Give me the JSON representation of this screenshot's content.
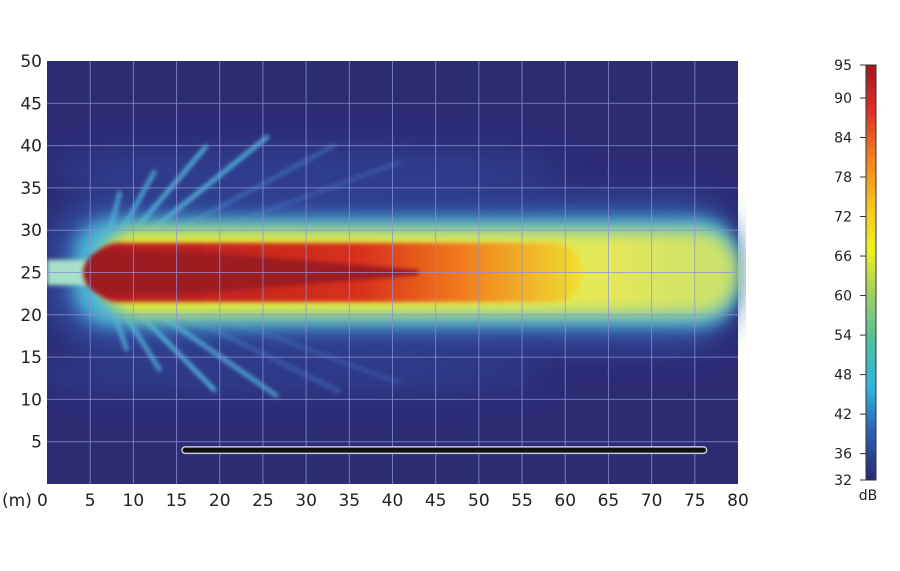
{
  "chart_data": {
    "type": "heatmap",
    "title": "",
    "xlabel": "",
    "ylabel": "",
    "x_unit_label": "(m)",
    "xlim": [
      0,
      80
    ],
    "ylim": [
      0,
      50
    ],
    "x_ticks": [
      0,
      5,
      10,
      15,
      20,
      25,
      30,
      35,
      40,
      45,
      50,
      55,
      60,
      65,
      70,
      75,
      80
    ],
    "y_ticks": [
      5,
      10,
      15,
      20,
      25,
      30,
      35,
      40,
      45,
      50
    ],
    "grid": true,
    "background_color": "#2b2c74",
    "grid_color": "#8d92d8",
    "source": {
      "x": 5,
      "y": 25
    },
    "barrier": {
      "x_start": 16,
      "x_end": 76,
      "y": 4
    },
    "zones": [
      {
        "level_db": 95,
        "x_range": [
          5,
          43
        ],
        "y_range": [
          22.5,
          27.5
        ]
      },
      {
        "level_db": 84,
        "x_range": [
          5,
          62
        ],
        "y_range": [
          21.5,
          28.5
        ]
      },
      {
        "level_db": 72,
        "x_range": [
          6,
          80
        ],
        "y_range": [
          20,
          30
        ]
      },
      {
        "level_db": 54,
        "x_range": [
          3,
          80
        ],
        "y_range": [
          18.5,
          31.5
        ]
      },
      {
        "level_db": 42,
        "x_range": [
          0,
          80
        ],
        "y_range": [
          16,
          34
        ]
      }
    ],
    "colorbar": {
      "unit": "dB",
      "min": 32,
      "max": 95,
      "ticks": [
        95,
        90,
        84,
        78,
        72,
        66,
        60,
        54,
        48,
        42,
        36,
        32
      ],
      "colors": [
        "#2a2a70",
        "#2a5db0",
        "#2fb5e0",
        "#4fbfa0",
        "#9ad060",
        "#f0f020",
        "#f8c020",
        "#f08020",
        "#e03028",
        "#a01820"
      ]
    }
  }
}
